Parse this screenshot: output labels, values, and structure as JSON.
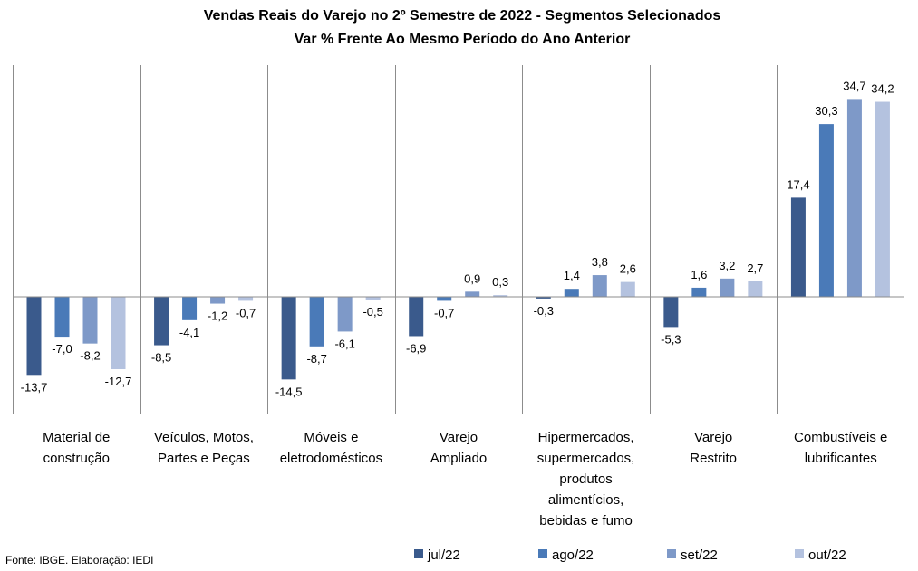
{
  "chart_data": {
    "type": "bar",
    "title": "Vendas Reais do Varejo no 2º Semestre de 2022 - Segmentos Selecionados",
    "subtitle": "Var % Frente Ao Mesmo Período do Ano Anterior",
    "categories": [
      [
        "Material de",
        "construção"
      ],
      [
        "Veículos, Motos,",
        "Partes e Peças"
      ],
      [
        "Móveis e",
        "eletrodomésticos"
      ],
      [
        "Varejo",
        "Ampliado"
      ],
      [
        "Hipermercados,",
        "supermercados,",
        "produtos",
        "alimentícios,",
        "bebidas e fumo"
      ],
      [
        "Varejo",
        "Restrito"
      ],
      [
        "Combustíveis e",
        "lubrificantes"
      ]
    ],
    "series": [
      {
        "name": "jul/22",
        "color": "#3a5a8c",
        "values": [
          -13.7,
          -8.5,
          -14.5,
          -6.9,
          -0.3,
          -5.3,
          17.4
        ],
        "labels": [
          "-13,7",
          "-8,5",
          "-14,5",
          "-6,9",
          "-0,3",
          "-5,3",
          "17,4"
        ]
      },
      {
        "name": "ago/22",
        "color": "#4a7ab8",
        "values": [
          -7.0,
          -4.1,
          -8.7,
          -0.7,
          1.4,
          1.6,
          30.3
        ],
        "labels": [
          "-7,0",
          "-4,1",
          "-8,7",
          "-0,7",
          "1,4",
          "1,6",
          "30,3"
        ]
      },
      {
        "name": "set/22",
        "color": "#7e99c8",
        "values": [
          -8.2,
          -1.2,
          -6.1,
          0.9,
          3.8,
          3.2,
          34.7
        ],
        "labels": [
          "-8,2",
          "-1,2",
          "-6,1",
          "0,9",
          "3,8",
          "3,2",
          "34,7"
        ]
      },
      {
        "name": "out/22",
        "color": "#b4c2df",
        "values": [
          -12.7,
          -0.7,
          -0.5,
          0.3,
          2.6,
          2.7,
          34.2
        ],
        "labels": [
          "-12,7",
          "-0,7",
          "-0,5",
          "0,3",
          "2,6",
          "2,7",
          "34,2"
        ]
      }
    ],
    "legend": "bottom-right",
    "source": "Fonte: IBGE. Elaboração: IEDI"
  }
}
